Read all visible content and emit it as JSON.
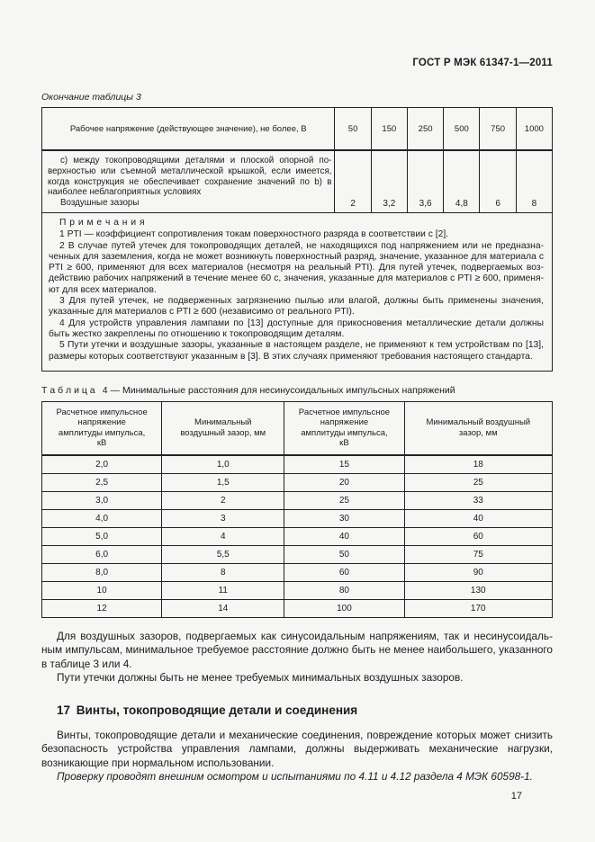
{
  "page": {
    "header": "ГОСТ Р МЭК 61347-1—2011",
    "page_number": "17"
  },
  "table3": {
    "caption": "Окончание таблицы 3",
    "header": {
      "label": "Рабочее напряжение (действующее значение), не более, В",
      "voltages": [
        "50",
        "150",
        "250",
        "500",
        "750",
        "1000"
      ]
    },
    "row": {
      "description": "с) между токопроводящими деталями и плоской опорной по­верхностью или съемной металлической крышкой, если имеется, когда конструкция не обеспечивает сохранение значений по b) в наиболее неблагоприятных условиях",
      "sublabel": "Воздушные зазоры",
      "values": [
        "2",
        "3,2",
        "3,6",
        "4,8",
        "6",
        "8"
      ]
    },
    "notes": {
      "title": "П р и м е ч а н и я",
      "items": [
        "1 PTI — коэффициент сопротивления токам поверхностного разряда в соответствии с [2].",
        "2 В случае путей утечек для токопроводящих деталей, не находящихся под напряжением или не предназна­ченных для заземления, когда не может возникнуть поверхностный разряд, значение, указанное для материала с PTI ≥ 600, применяют для всех материалов (несмотря на реальный PTI). Для путей утечек, подвергаемых воз­действию рабочих напряжений в течение менее 60 с, значения, указанные для материалов с PTI ≥ 600, применя­ют для всех материалов.",
        "3 Для путей утечек, не подверженных загрязнению пылью или влагой, должны быть применены значения, указанные для материалов с PTI ≥ 600 (независимо от реального PTI).",
        "4 Для устройств управления лампами по [13] доступные для прикосновения металлические детали должны быть жестко закреплены по отношению к токопроводящим деталям.",
        "5 Пути утечки и воздушные зазоры, указанные в настоящем разделе, не применяют к тем устройствам по [13], размеры которых соответствуют указанным в [3]. В этих случаях применяют требования настоящего стан­дарта."
      ]
    }
  },
  "table4": {
    "caption": "Т а б л и ц а  4 — Минимальные расстояния для несинусоидальных импульсных напряжений",
    "headers": [
      "Расчетное импульсное напряжение амплитуды импульса, кВ",
      "Минимальный воздушный зазор, мм",
      "Расчетное импульсное напряжение амплитуды импульса, кВ",
      "Минимальный воздушный зазор, мм"
    ],
    "rows": [
      [
        "2,0",
        "1,0",
        "15",
        "18"
      ],
      [
        "2,5",
        "1,5",
        "20",
        "25"
      ],
      [
        "3,0",
        "2",
        "25",
        "33"
      ],
      [
        "4,0",
        "3",
        "30",
        "40"
      ],
      [
        "5,0",
        "4",
        "40",
        "60"
      ],
      [
        "6,0",
        "5,5",
        "50",
        "75"
      ],
      [
        "8,0",
        "8",
        "60",
        "90"
      ],
      [
        "10",
        "11",
        "80",
        "130"
      ],
      [
        "12",
        "14",
        "100",
        "170"
      ]
    ]
  },
  "chart_data": {
    "type": "table",
    "title": "Таблица 4 — Минимальные расстояния для несинусоидальных импульсных напряжений",
    "columns": [
      "Расчетное импульсное напряжение амплитуды импульса, кВ",
      "Минимальный воздушный зазор, мм",
      "Расчетное импульсное напряжение амплитуды импульса, кВ",
      "Минимальный воздушный зазор, мм"
    ],
    "impulse_voltage_kV": [
      2.0,
      2.5,
      3.0,
      4.0,
      5.0,
      6.0,
      8.0,
      10,
      12
    ],
    "min_air_gap_mm": [
      1.0,
      1.5,
      2,
      3,
      4,
      5.5,
      8,
      11,
      14
    ],
    "impulse_voltage_kV_2": [
      15,
      20,
      25,
      30,
      40,
      50,
      60,
      80,
      100
    ],
    "min_air_gap_mm_2": [
      18,
      25,
      33,
      40,
      60,
      75,
      90,
      130,
      170
    ]
  },
  "body": {
    "para1": "Для воздушных зазоров, подвергаемых как синусоидальным напряжениям, так и несинусоидаль­ным импульсам, минимальное требуемое расстояние должно быть не менее наибольшего, указанного в таблице 3 или 4.",
    "para2": "Пути утечки должны быть не менее требуемых минимальных воздушных зазоров.",
    "section_heading": "17 Винты, токопроводящие детали и соединения",
    "para3": "Винты, токопроводящие детали и механические соединения, повреждение которых может снизить безопасность устройства управления лампами, должны выдерживать механические нагрузки, возника­ющие при нормальном использовании.",
    "para4": "Проверку проводят внешним осмотром и испытаниями по 4.11 и 4.12 раздела 4 МЭК 60598-1."
  }
}
